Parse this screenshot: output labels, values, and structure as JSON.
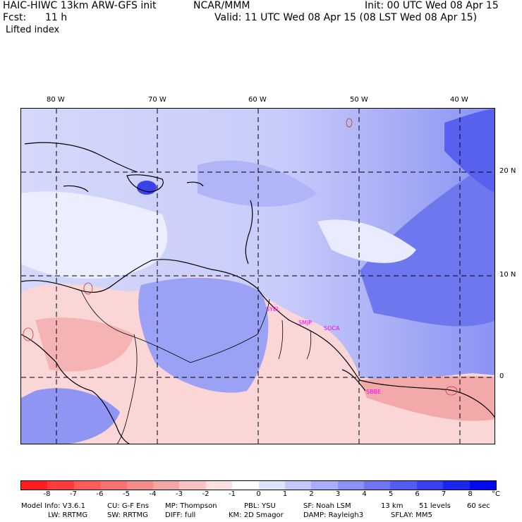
{
  "header": {
    "model": "HAIC-HIWC 13km ARW-GFS init",
    "org": "NCAR/MMM",
    "init": "Init: 00 UTC Wed 08 Apr 15",
    "fcst_label": "Fcst:",
    "fcst_value": "11 h",
    "valid": "Valid: 11 UTC Wed 08 Apr 15 (08 LST Wed 08 Apr 15)",
    "field": "Lifted index"
  },
  "map": {
    "lon_labels": [
      "80 W",
      "70 W",
      "60 W",
      "50 W",
      "40 W"
    ],
    "lat_labels": [
      "20 N",
      "10 N",
      "0"
    ],
    "stations": [
      "SYEL",
      "SMJP",
      "SOCA",
      "SBBE"
    ],
    "station_color": "#ff00ff"
  },
  "colorbar": {
    "unit": "°C",
    "ticks": [
      "-8",
      "-7",
      "-6",
      "-5",
      "-4",
      "-3",
      "-2",
      "-1",
      "0",
      "1",
      "2",
      "3",
      "4",
      "5",
      "6",
      "7",
      "8"
    ],
    "colors": [
      "#ff1e1e",
      "#ff3c3c",
      "#ff5a5a",
      "#f57272",
      "#f58c8c",
      "#f5a5a5",
      "#fac3c3",
      "#fde0e0",
      "#ffffff",
      "#e0e4ff",
      "#c4c8ff",
      "#a8adfa",
      "#8c92f5",
      "#7076f0",
      "#545cf0",
      "#3840f0",
      "#1c24f0",
      "#0008f0"
    ]
  },
  "footer": {
    "line1": [
      "Model Info: V3.6.1",
      "CU: G-F Ens",
      "MP: Thompson",
      "PBL: YSU",
      "SF: Noah LSM",
      "13 km",
      "51 levels",
      "60 sec"
    ],
    "line2": [
      "LW: RRTMG",
      "SW: RRTMG",
      "DIFF: full",
      "KM: 2D Smagor",
      "DAMP: Rayleigh3",
      "SFLAY: MM5"
    ]
  }
}
